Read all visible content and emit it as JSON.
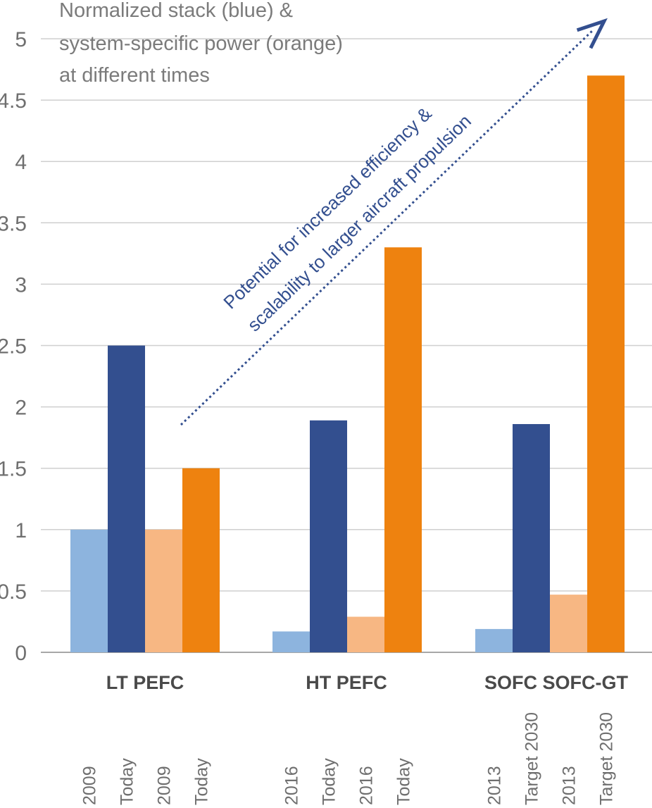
{
  "chart_data": {
    "type": "bar",
    "title_lines": [
      "Normalized stack (blue) &",
      "system-specific power (orange)",
      "at different times"
    ],
    "xlabel": "",
    "ylabel": "",
    "ylim": [
      0,
      5
    ],
    "y_ticks": [
      "0",
      "0.5",
      "1",
      "1.5",
      "2",
      "2.5",
      "3",
      "3.5",
      "4",
      "4.5",
      "5"
    ],
    "grid": true,
    "colors": {
      "stack_early": "#8db4de",
      "stack_later": "#334f8f",
      "power_early": "#f7b783",
      "power_later": "#ee820f",
      "grid": "#cfcfcf",
      "arrow": "#334f8f"
    },
    "groups": [
      {
        "label": "LT PEFC",
        "bars": [
          {
            "label": "2009",
            "value": 1.0,
            "kind": "stack_early"
          },
          {
            "label": "Today",
            "value": 2.5,
            "kind": "stack_later"
          },
          {
            "label": "2009",
            "value": 1.0,
            "kind": "power_early"
          },
          {
            "label": "Today",
            "value": 1.5,
            "kind": "power_later"
          }
        ]
      },
      {
        "label": "HT PEFC",
        "bars": [
          {
            "label": "2016",
            "value": 0.17,
            "kind": "stack_early"
          },
          {
            "label": "Today",
            "value": 1.89,
            "kind": "stack_later"
          },
          {
            "label": "2016",
            "value": 0.29,
            "kind": "power_early"
          },
          {
            "label": "Today",
            "value": 3.3,
            "kind": "power_later"
          }
        ]
      },
      {
        "label": "SOFC  SOFC-GT",
        "bars": [
          {
            "label": "2013",
            "value": 0.19,
            "kind": "stack_early"
          },
          {
            "label": "Target 2030",
            "value": 1.86,
            "kind": "stack_later"
          },
          {
            "label": "2013",
            "value": 0.47,
            "kind": "power_early"
          },
          {
            "label": "Target 2030",
            "value": 4.7,
            "kind": "power_later"
          }
        ]
      }
    ],
    "annotation": {
      "lines": [
        "Potential for increased efficiency &",
        "scalability to larger aircraft propulsion"
      ]
    }
  }
}
